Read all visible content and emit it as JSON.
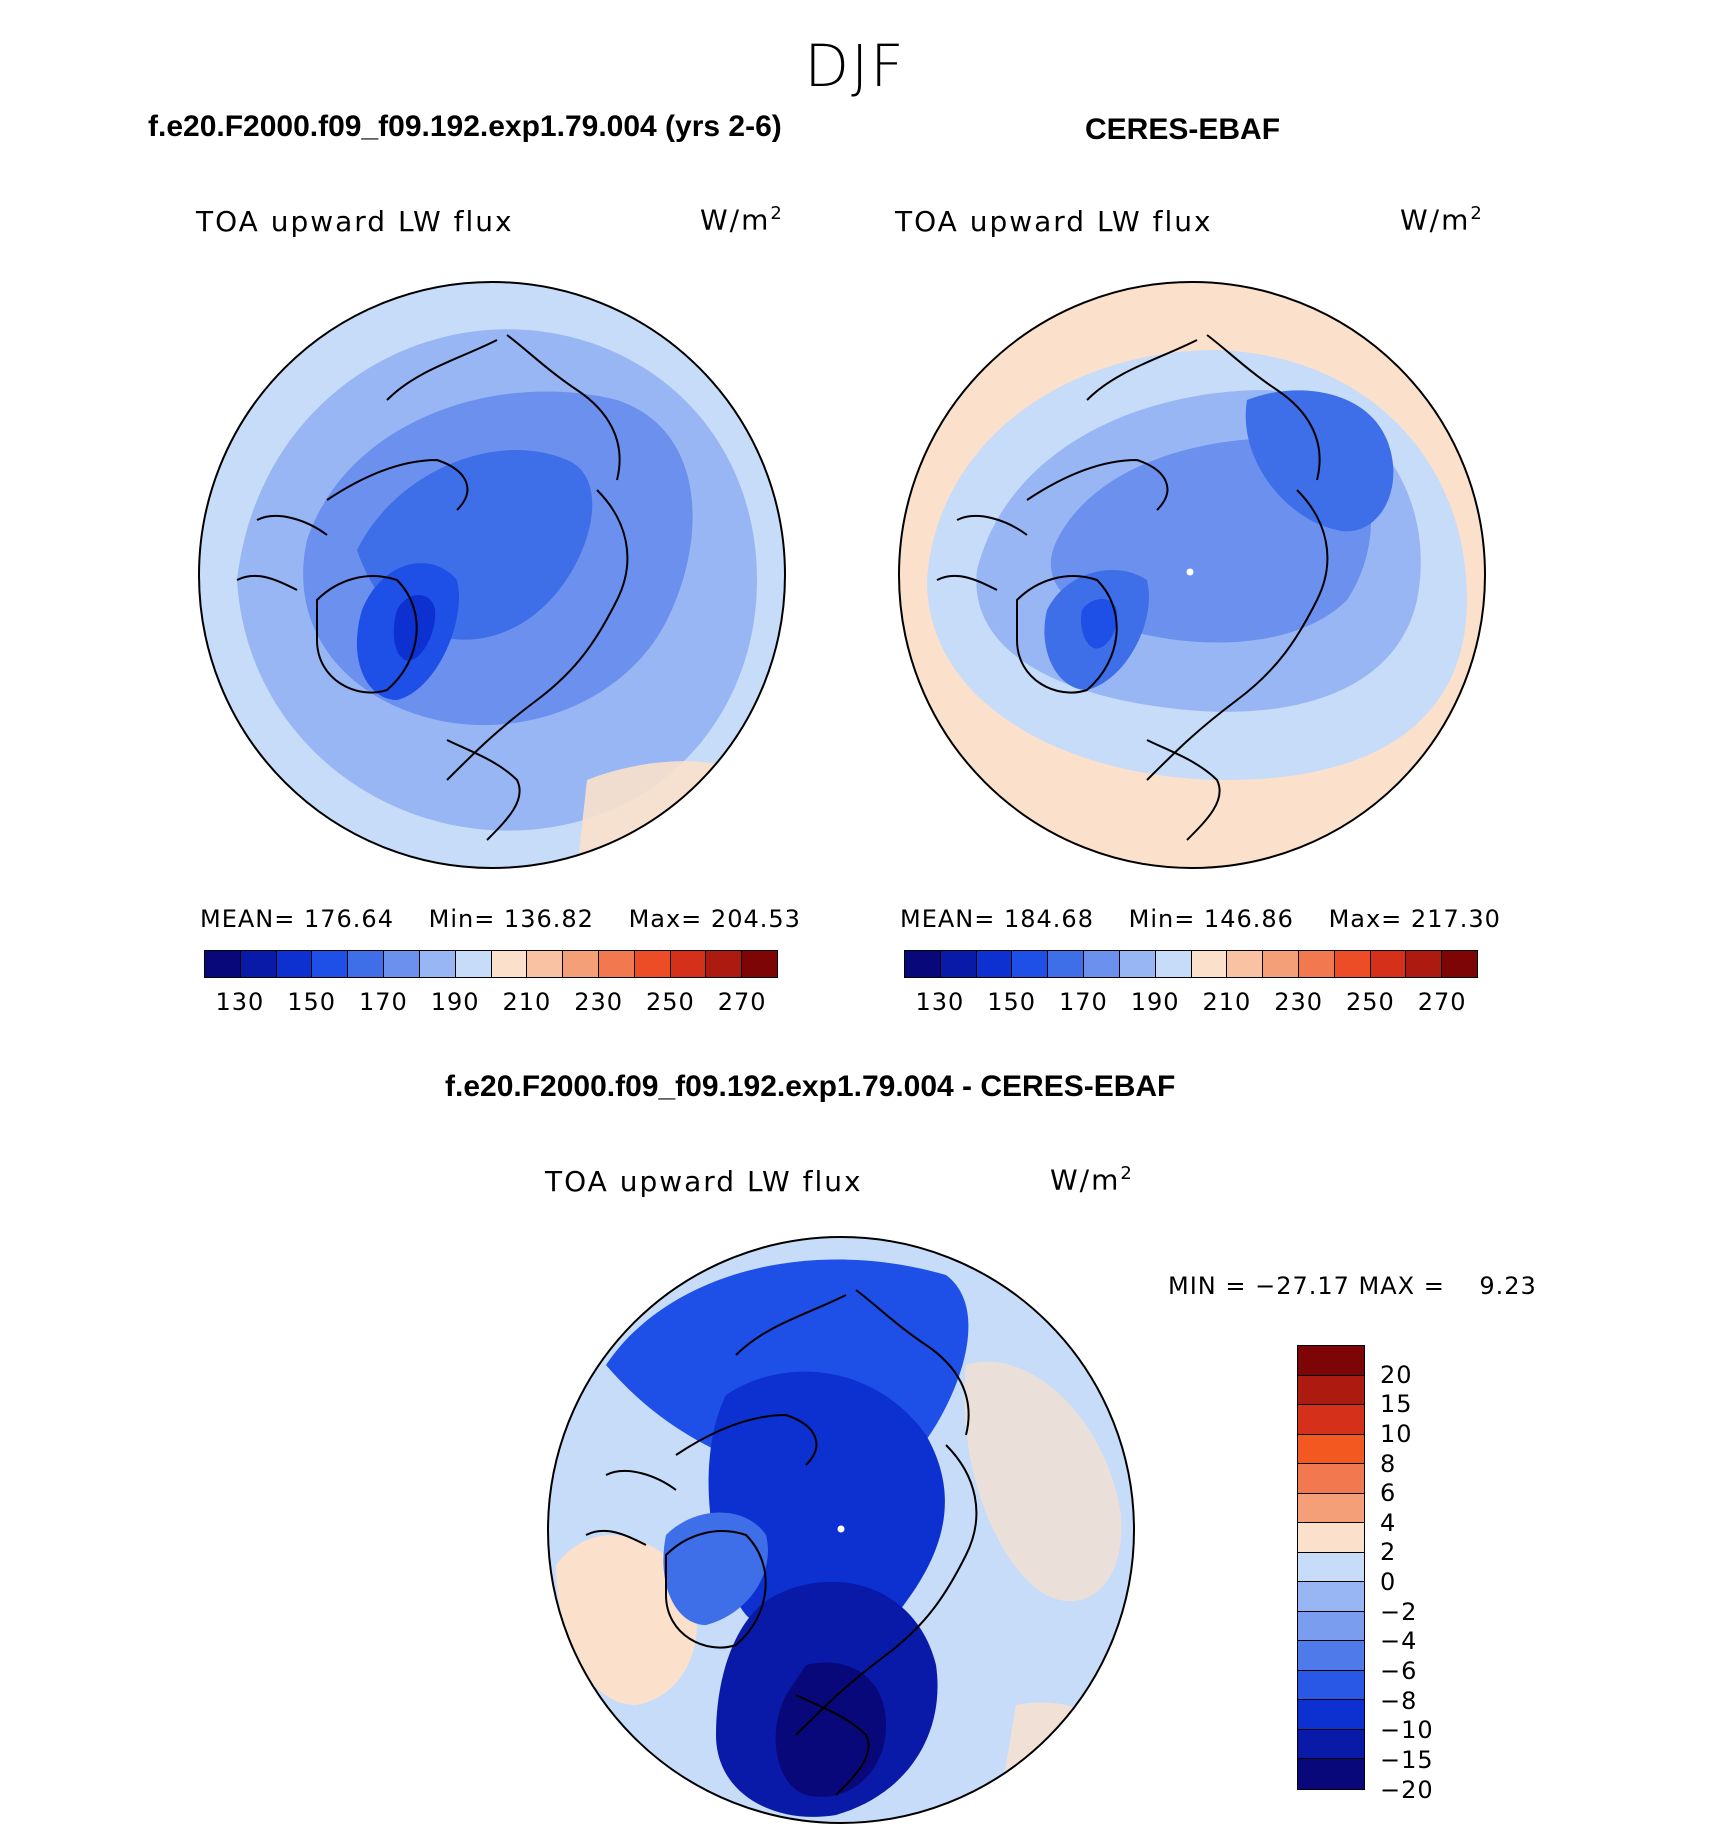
{
  "figure": {
    "title": "DJF"
  },
  "panels": {
    "model": {
      "title": "f.e20.F2000.f09_f09.192.exp1.79.004 (yrs 2-6)",
      "variable": "TOA upward LW flux",
      "units_base": "W/m",
      "units_exp": "2",
      "stats": {
        "mean_label": "MEAN= 176.64",
        "min_label": "Min= 136.82",
        "max_label": "Max= 204.53"
      }
    },
    "obs": {
      "title": "CERES-EBAF",
      "variable": "TOA upward LW flux",
      "units_base": "W/m",
      "units_exp": "2",
      "stats": {
        "mean_label": "MEAN= 184.68",
        "min_label": "Min= 146.86",
        "max_label": "Max= 217.30"
      }
    },
    "diff": {
      "title": "f.e20.F2000.f09_f09.192.exp1.79.004 - CERES-EBAF",
      "variable": "TOA upward LW flux",
      "units_base": "W/m",
      "units_exp": "2",
      "minmax_label": "MIN = −27.17 MAX =    9.23"
    }
  },
  "chart_data": [
    {
      "type": "heatmap",
      "projection": "north-polar-stereographic",
      "title": "f.e20.F2000.f09_f09.192.exp1.79.004 (yrs 2-6)",
      "variable": "TOA upward LW flux",
      "units": "W/m2",
      "mean": 176.64,
      "min": 136.82,
      "max": 204.53,
      "colorbar": {
        "orientation": "horizontal",
        "tick_labels": [
          "130",
          "150",
          "170",
          "190",
          "210",
          "230",
          "250",
          "270"
        ],
        "levels": [
          130,
          140,
          150,
          160,
          170,
          180,
          190,
          200,
          210,
          220,
          230,
          240,
          250,
          260,
          270
        ],
        "colors": [
          "#08087a",
          "#0a1aa8",
          "#0d30d0",
          "#1e4fe6",
          "#3f6fe8",
          "#6b90ee",
          "#98b6f3",
          "#c6dcf9",
          "#fbe1cc",
          "#f9c2a2",
          "#f59f78",
          "#f2784f",
          "#ec4d26",
          "#d4301a",
          "#ad1a10",
          "#7e0505"
        ]
      }
    },
    {
      "type": "heatmap",
      "projection": "north-polar-stereographic",
      "title": "CERES-EBAF",
      "variable": "TOA upward LW flux",
      "units": "W/m2",
      "mean": 184.68,
      "min": 146.86,
      "max": 217.3,
      "colorbar": {
        "orientation": "horizontal",
        "tick_labels": [
          "130",
          "150",
          "170",
          "190",
          "210",
          "230",
          "250",
          "270"
        ],
        "levels": [
          130,
          140,
          150,
          160,
          170,
          180,
          190,
          200,
          210,
          220,
          230,
          240,
          250,
          260,
          270
        ],
        "colors": [
          "#08087a",
          "#0a1aa8",
          "#0d30d0",
          "#1e4fe6",
          "#3f6fe8",
          "#6b90ee",
          "#98b6f3",
          "#c6dcf9",
          "#fbe1cc",
          "#f9c2a2",
          "#f59f78",
          "#f2784f",
          "#ec4d26",
          "#d4301a",
          "#ad1a10",
          "#7e0505"
        ]
      }
    },
    {
      "type": "heatmap",
      "projection": "north-polar-stereographic",
      "title": "f.e20.F2000.f09_f09.192.exp1.79.004 - CERES-EBAF",
      "variable": "TOA upward LW flux",
      "units": "W/m2",
      "min": -27.17,
      "max": 9.23,
      "colorbar": {
        "orientation": "vertical",
        "tick_labels": [
          "20",
          "15",
          "10",
          "8",
          "6",
          "4",
          "2",
          "0",
          "−2",
          "−4",
          "−6",
          "−8",
          "−10",
          "−15",
          "−20"
        ],
        "colors": [
          "#7e0505",
          "#ad1a10",
          "#d4301a",
          "#f2581f",
          "#f2784f",
          "#f59f78",
          "#fbe1cc",
          "#c6dcf9",
          "#98b6f3",
          "#7a9df0",
          "#4f7bea",
          "#2a58e6",
          "#0d30d0",
          "#0a1aa8",
          "#08087a"
        ]
      }
    }
  ]
}
